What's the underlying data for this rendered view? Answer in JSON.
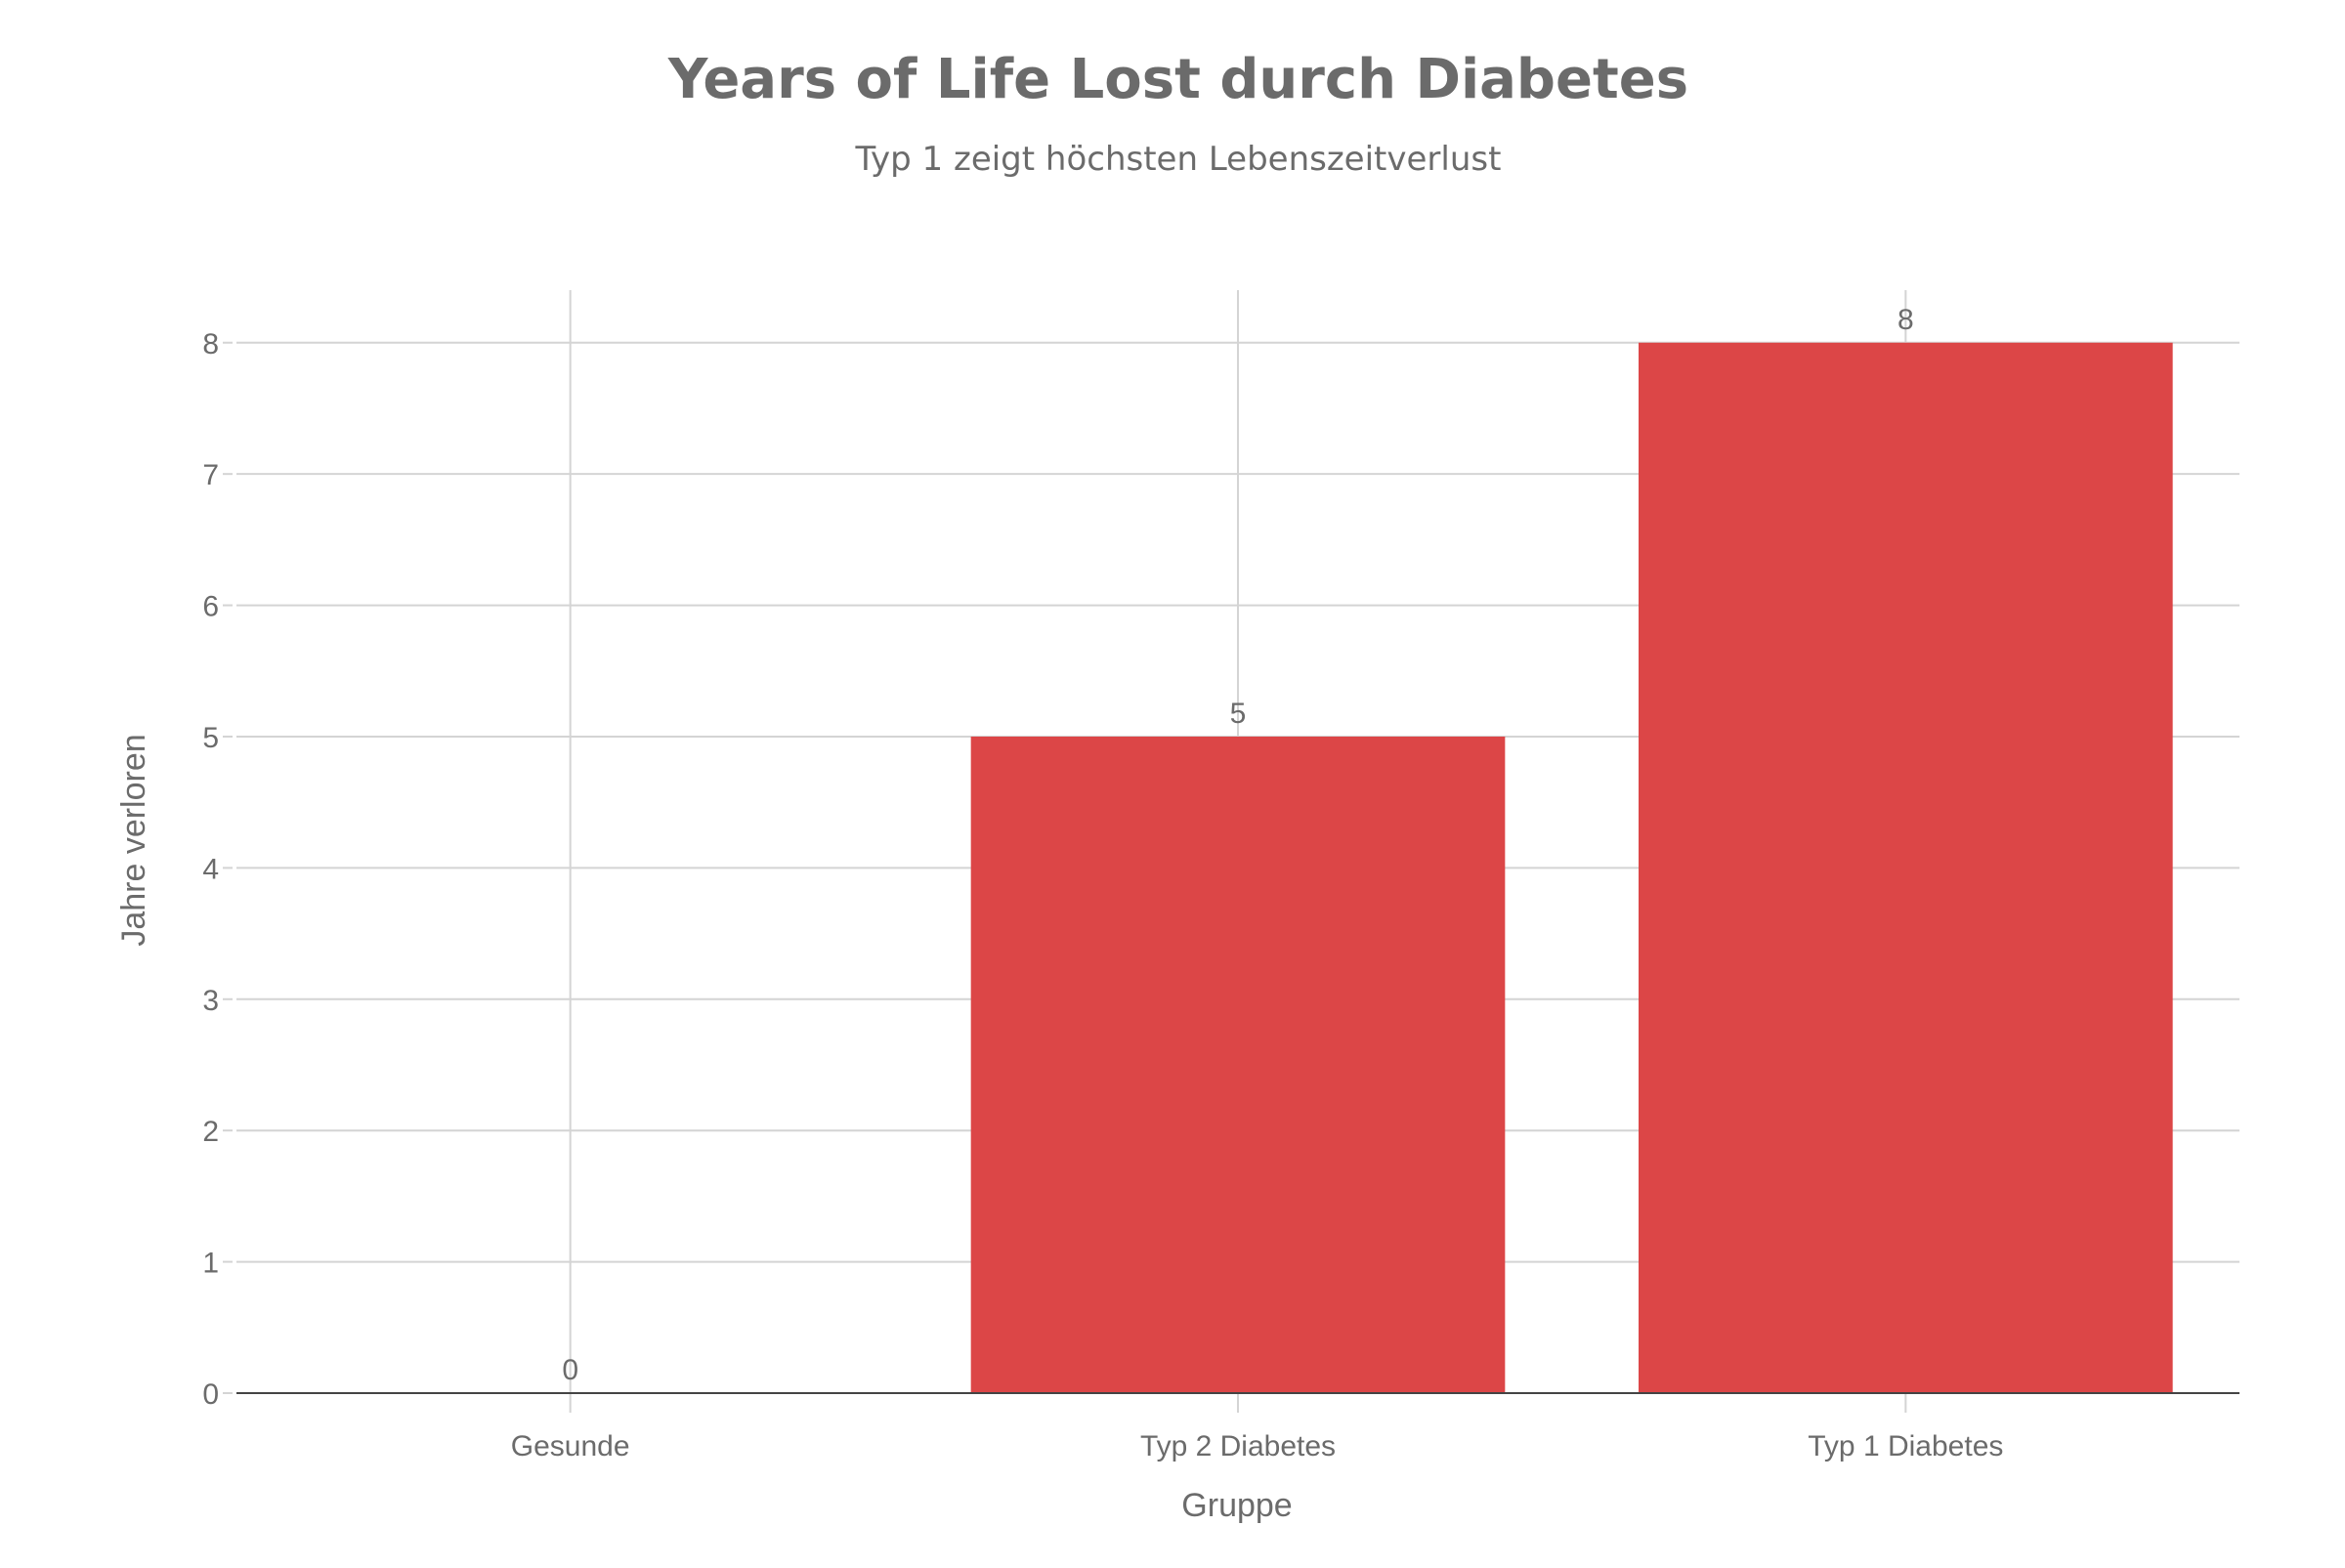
{
  "chart_data": {
    "type": "bar",
    "title": "Years of Life Lost durch Diabetes",
    "subtitle": "Typ 1 zeigt höchsten Lebenszeitverlust",
    "xlabel": "Gruppe",
    "ylabel": "Jahre verloren",
    "categories": [
      "Gesunde",
      "Typ 2 Diabetes",
      "Typ 1 Diabetes"
    ],
    "values": [
      0,
      5,
      8
    ],
    "data_labels": [
      "0",
      "5",
      "8"
    ],
    "ylim": [
      0,
      8.4
    ],
    "yticks": [
      0,
      1,
      2,
      3,
      4,
      5,
      6,
      7,
      8
    ],
    "grid": true,
    "bar_color": "#dc4647"
  }
}
